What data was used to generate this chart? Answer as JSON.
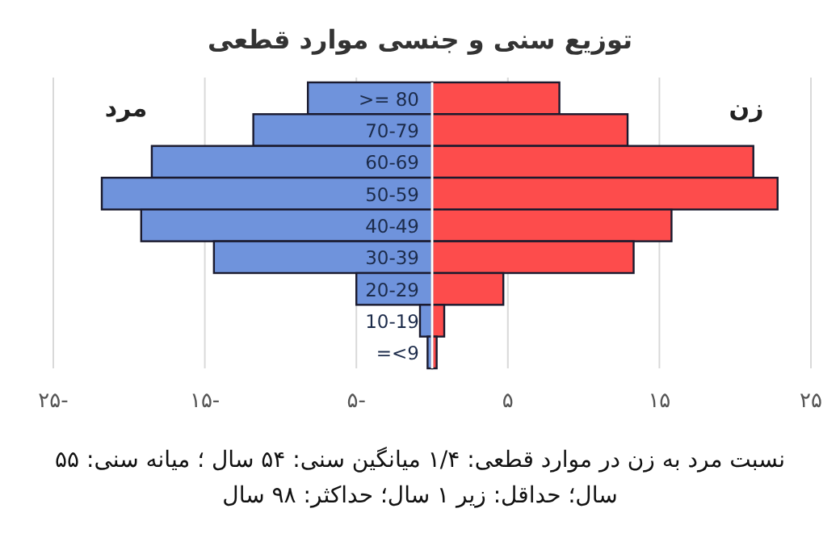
{
  "chart_data": {
    "type": "bar",
    "orientation": "horizontal",
    "title": "توزیع سنی و جنسی موارد قطعی",
    "categories": [
      ">= 80",
      "70-79",
      "60-69",
      "50-59",
      "40-49",
      "30-39",
      "20-29",
      "10-19",
      "=<9"
    ],
    "series": [
      {
        "name": "مرد",
        "color": "#6f93dc",
        "values": [
          -8.2,
          -11.8,
          -18.5,
          -21.8,
          -19.2,
          -14.4,
          -5.0,
          -0.8,
          -0.3
        ]
      },
      {
        "name": "زن",
        "color": "#fd4c4c",
        "values": [
          8.4,
          12.9,
          21.2,
          22.8,
          15.8,
          13.3,
          4.7,
          0.8,
          0.3
        ]
      }
    ],
    "xlim": [
      -25,
      25
    ],
    "xticks": [
      {
        "value": -25,
        "label": "۲۵-"
      },
      {
        "value": -15,
        "label": "۱۵-"
      },
      {
        "value": -5,
        "label": "۵-"
      },
      {
        "value": 5,
        "label": "۵"
      },
      {
        "value": 15,
        "label": "۱۵"
      },
      {
        "value": 25,
        "label": "۲۵"
      }
    ],
    "grid": "x",
    "stacked": true,
    "annotations": [
      "نسبت مرد به زن در موارد قطعی: ۱/۴  میانگین سنی: ۵۴ سال ؛ میانه سنی: ۵۵ سال؛ حداقل: زیر ۱ سال؛ حداکثر: ۹۸ سال"
    ]
  }
}
